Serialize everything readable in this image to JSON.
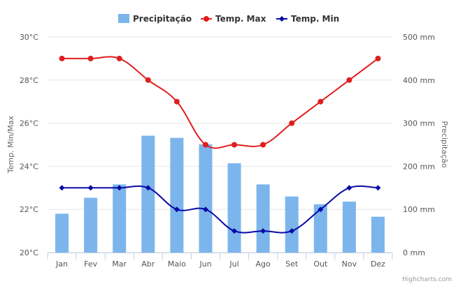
{
  "chart_data": {
    "type": "bar+line",
    "categories": [
      "Jan",
      "Fev",
      "Mar",
      "Abr",
      "Maio",
      "Jun",
      "Jul",
      "Ago",
      "Set",
      "Out",
      "Nov",
      "Dez"
    ],
    "series": [
      {
        "name": "Precipitação",
        "type": "bar",
        "axis": "right",
        "color": "#7cb5ec",
        "values": [
          90,
          127,
          158,
          271,
          266,
          251,
          207,
          158,
          130,
          112,
          118,
          83
        ]
      },
      {
        "name": "Temp. Max",
        "type": "line",
        "axis": "left",
        "color": "#e01e1e",
        "marker": "circle",
        "values": [
          29,
          29,
          29,
          28,
          27,
          25,
          25,
          25,
          26,
          27,
          28,
          29
        ]
      },
      {
        "name": "Temp. Min",
        "type": "line",
        "axis": "left",
        "color": "#0a0aa8",
        "marker": "diamond",
        "values": [
          23,
          23,
          23,
          23,
          22,
          22,
          21,
          21,
          21,
          22,
          23,
          23
        ]
      }
    ],
    "y_left": {
      "label": "Temp. Min/Max",
      "ylim": [
        20,
        30
      ],
      "ticks": [
        20,
        22,
        24,
        26,
        28,
        30
      ],
      "tick_labels": [
        "20°C",
        "22°C",
        "24°C",
        "26°C",
        "28°C",
        "30°C"
      ]
    },
    "y_right": {
      "label": "Precipitação",
      "ylim": [
        0,
        500
      ],
      "ticks": [
        0,
        100,
        200,
        300,
        400,
        500
      ],
      "tick_labels": [
        "0 mm",
        "100 mm",
        "200 mm",
        "300 mm",
        "400 mm",
        "500 mm"
      ]
    },
    "grid": true,
    "legend": "top-center",
    "credits": "Highcharts.com"
  }
}
